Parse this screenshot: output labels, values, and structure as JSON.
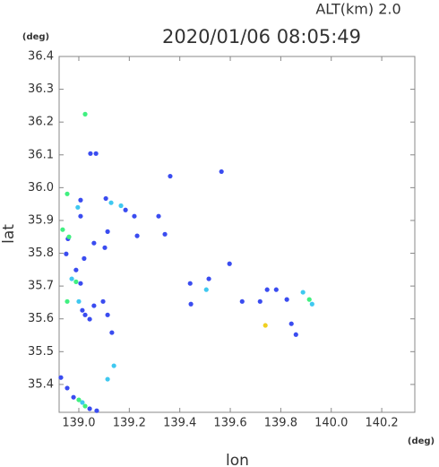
{
  "chart_data": {
    "type": "scatter",
    "title": "2020/01/06 08:05:49",
    "subtitle": "ALT(km)  2.0",
    "x_label": "lon",
    "y_label": "lat",
    "x_unit": "(deg)",
    "y_unit": "(deg)",
    "xlim": [
      138.922,
      140.331
    ],
    "ylim": [
      35.315,
      36.4
    ],
    "xticks": [
      {
        "value": 139,
        "label": "139.0"
      },
      139.2,
      139.4,
      139.6,
      139.8,
      {
        "value": 140,
        "label": "140.0"
      },
      140.2
    ],
    "yticks": [
      36.4,
      36.3,
      36.2,
      36.1,
      {
        "value": 36,
        "label": "36.0"
      },
      35.9,
      35.8,
      35.7,
      35.6,
      35.5,
      35.4
    ],
    "series": [
      {
        "color": "#3a4cf0",
        "x": [
          139.068,
          139.046,
          139.565,
          139.007,
          139.007,
          139.107,
          139.185,
          139.316,
          139.114,
          139.231,
          139.341,
          138.957,
          139.06,
          139.103,
          138.95,
          139.021,
          138.989,
          139.007,
          139.014,
          139.025,
          139.043,
          139.06,
          139.096,
          139.114,
          139.131,
          139.444,
          139.515,
          139.597,
          139.647,
          139.718,
          139.746,
          139.782,
          139.824,
          139.86,
          139.842,
          138.929,
          138.954,
          138.979,
          139.043,
          139.071,
          139.441,
          139.22,
          139.362
        ],
        "values": [
          36.104,
          36.104,
          36.049,
          35.962,
          35.913,
          35.967,
          35.932,
          35.913,
          35.866,
          35.853,
          35.858,
          35.844,
          35.831,
          35.817,
          35.798,
          35.784,
          35.749,
          35.708,
          35.626,
          35.612,
          35.599,
          35.64,
          35.653,
          35.612,
          35.558,
          35.645,
          35.722,
          35.768,
          35.653,
          35.653,
          35.689,
          35.689,
          35.659,
          35.552,
          35.585,
          35.421,
          35.389,
          35.361,
          35.326,
          35.32,
          35.708,
          35.913,
          36.035
        ]
      },
      {
        "color": "#3fc8f0",
        "x": [
          138.996,
          139.128,
          139.167,
          138.972,
          139.0,
          139.139,
          139.114,
          139.505,
          139.924,
          139.888,
          139.014
        ],
        "values": [
          35.94,
          35.954,
          35.945,
          35.722,
          35.653,
          35.457,
          35.416,
          35.689,
          35.645,
          35.681,
          35.345
        ]
      },
      {
        "color": "#40f080",
        "x": [
          139.025,
          138.954,
          138.936,
          138.961,
          138.989,
          138.954,
          139.0,
          139.025,
          139.913
        ],
        "values": [
          36.224,
          35.981,
          35.872,
          35.85,
          35.713,
          35.653,
          35.353,
          35.334,
          35.659
        ]
      },
      {
        "color": "#f0d020",
        "x": [
          139.739
        ],
        "values": [
          35.58
        ]
      }
    ]
  }
}
